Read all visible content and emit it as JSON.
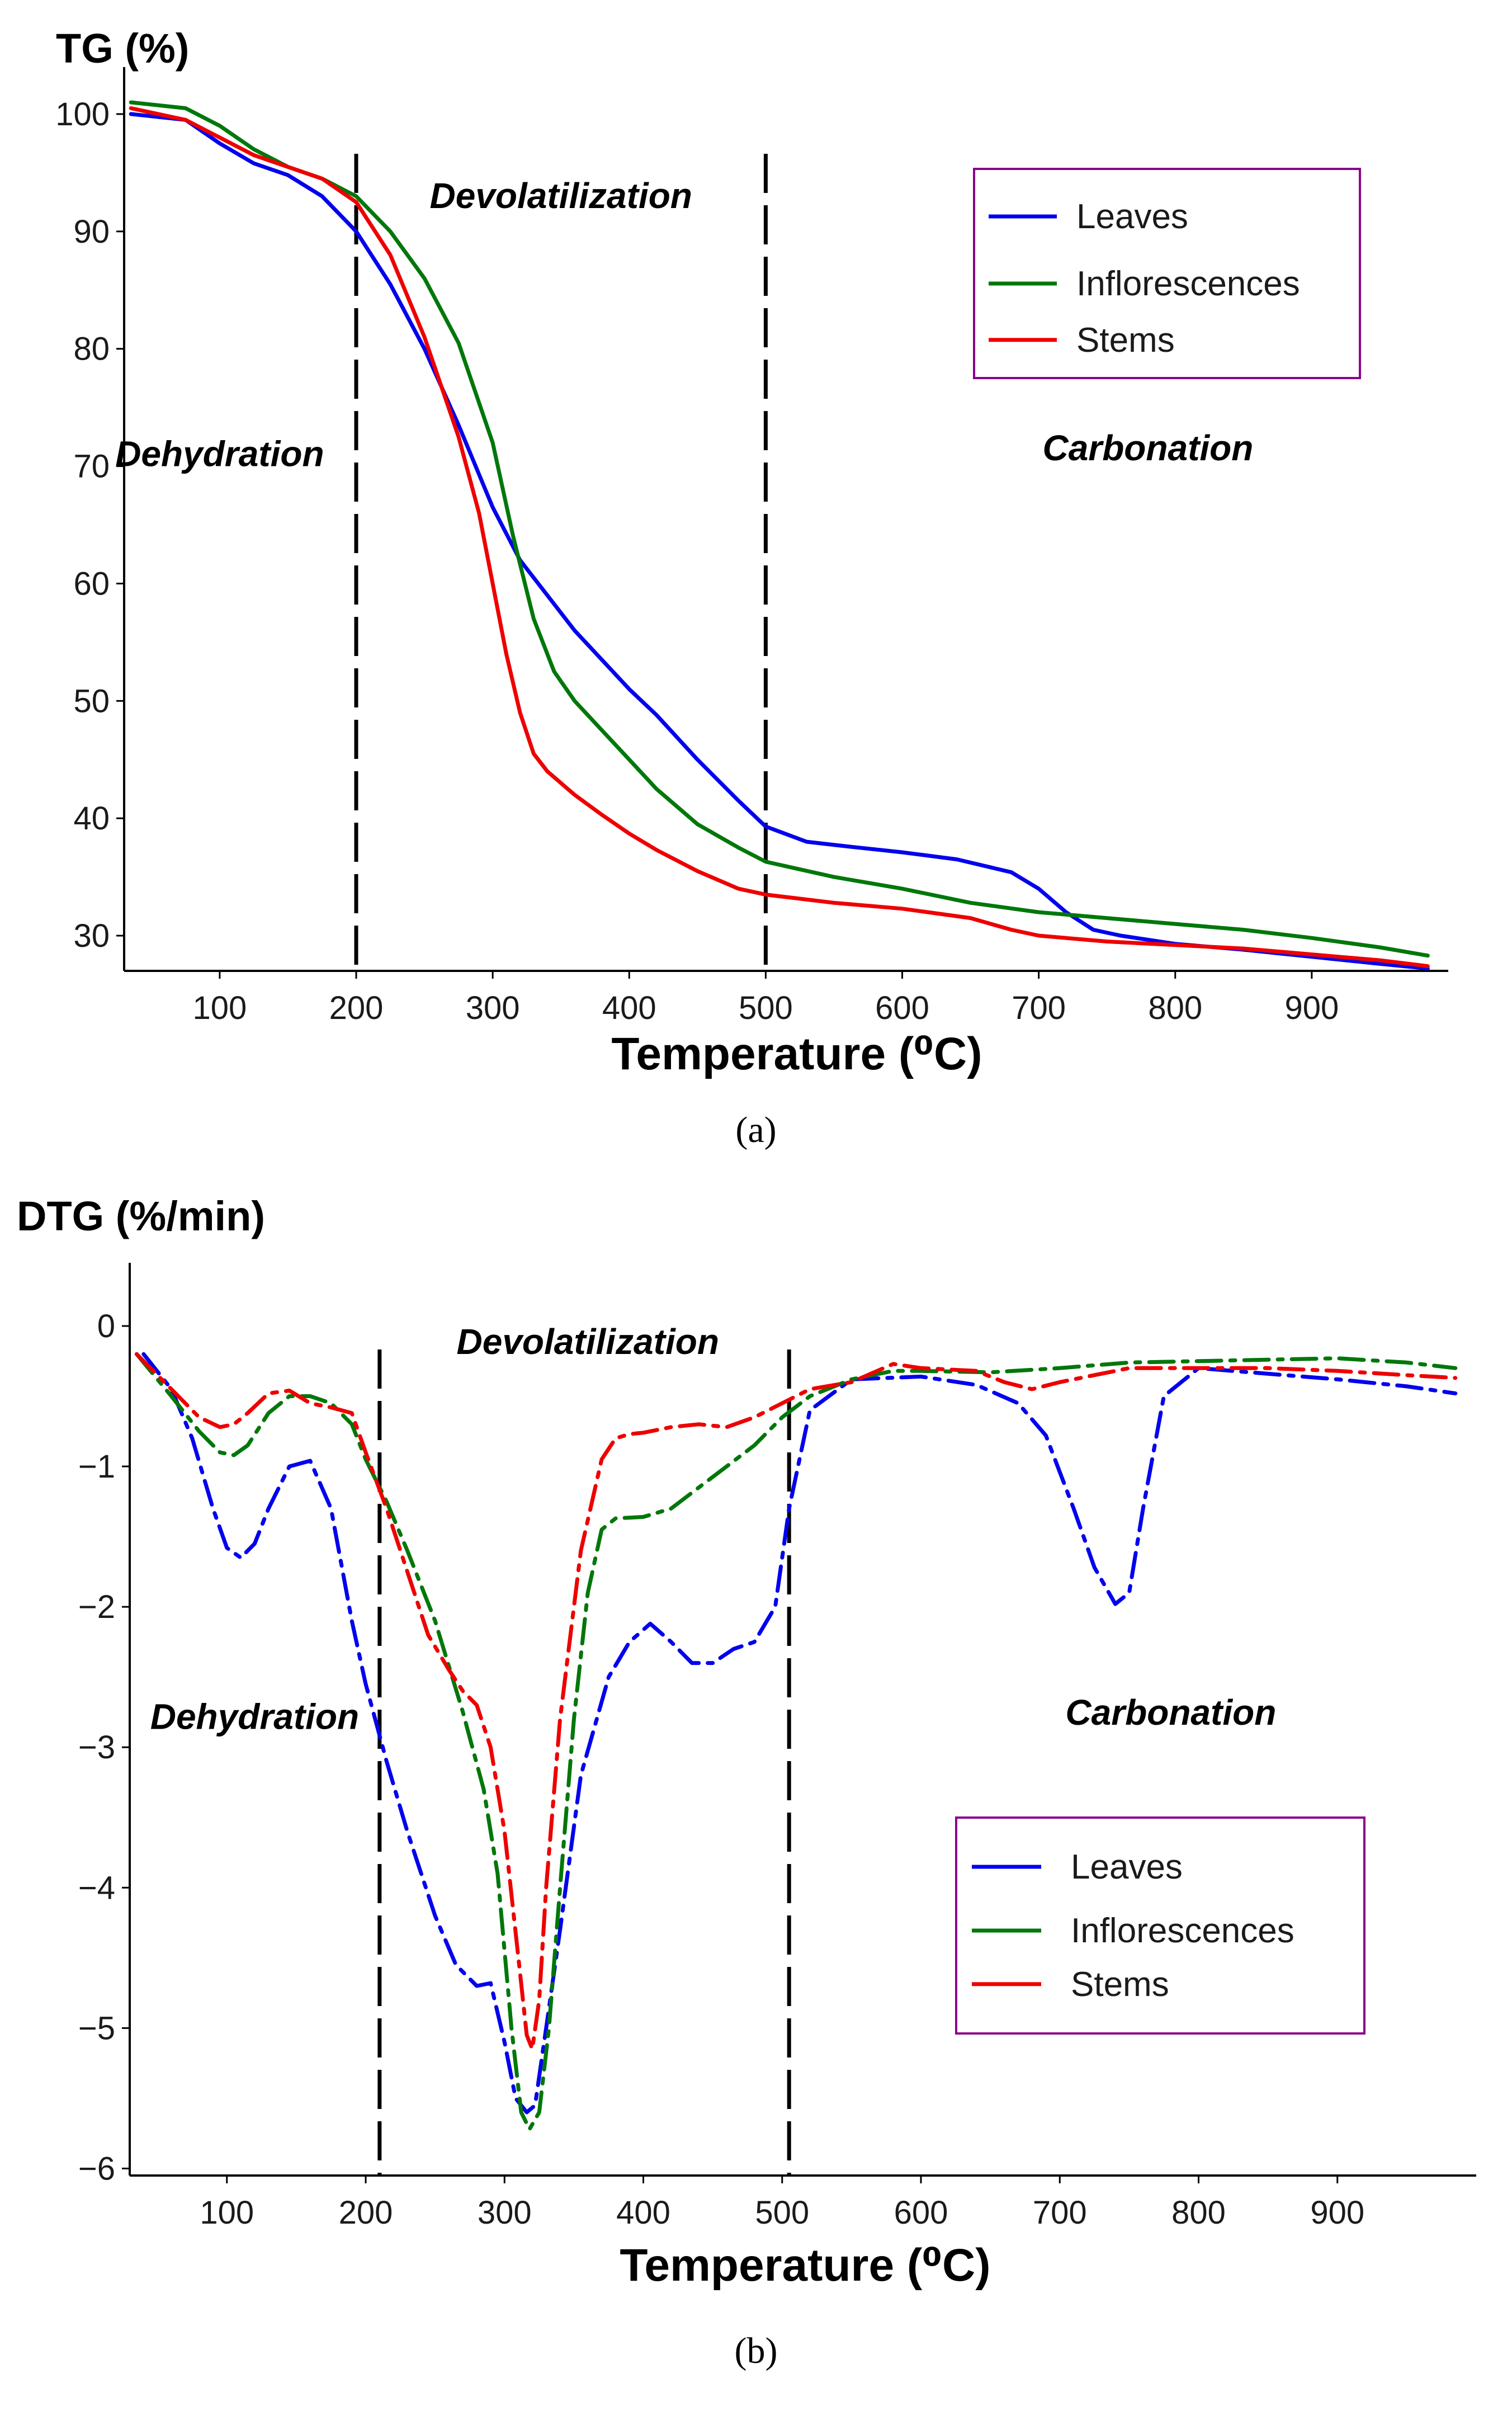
{
  "chart_data": [
    {
      "type": "line",
      "panel": "a",
      "ylabel": "TG (%)",
      "xlabel": "Temperature (⁰C)",
      "caption": "(a)",
      "xlim": [
        30,
        1000
      ],
      "ylim": [
        27,
        104
      ],
      "xticks": [
        100,
        200,
        300,
        400,
        500,
        600,
        700,
        800,
        900
      ],
      "yticks": [
        30,
        40,
        50,
        60,
        70,
        80,
        90,
        100
      ],
      "xtick_labels": [
        "100",
        "200",
        "300",
        "400",
        "500",
        "600",
        "700",
        "800",
        "900"
      ],
      "ytick_labels": [
        "30",
        "40",
        "50",
        "60",
        "70",
        "80",
        "90",
        "100"
      ],
      "dividers": [
        200,
        500
      ],
      "divider_style": "long-dash",
      "regions": [
        {
          "label": "Dehydration",
          "x": 100,
          "y": 70
        },
        {
          "label": "Devolatilization",
          "x": 350,
          "y": 92
        },
        {
          "label": "Carbonation",
          "x": 780,
          "y": 70.5
        }
      ],
      "legend_position": "top-right",
      "series": [
        {
          "name": "Leaves",
          "color": "#0000ee",
          "dash": "solid",
          "x": [
            35,
            75,
            100,
            125,
            150,
            175,
            200,
            225,
            250,
            275,
            300,
            320,
            340,
            360,
            380,
            400,
            420,
            450,
            480,
            500,
            530,
            560,
            600,
            640,
            680,
            700,
            720,
            740,
            760,
            800,
            850,
            900,
            950,
            985
          ],
          "y": [
            100,
            99.5,
            97.5,
            95.8,
            94.8,
            93,
            90,
            85.5,
            80,
            73.5,
            66.5,
            62,
            59,
            56,
            53.5,
            51,
            48.8,
            45,
            41.5,
            39.3,
            38,
            37.6,
            37.1,
            36.5,
            35.4,
            34,
            32,
            30.5,
            30,
            29.3,
            28.8,
            28.2,
            27.6,
            27.2
          ]
        },
        {
          "name": "Inflorescences",
          "color": "#00770a",
          "dash": "solid",
          "x": [
            35,
            75,
            100,
            125,
            150,
            175,
            200,
            225,
            250,
            275,
            300,
            315,
            330,
            345,
            360,
            380,
            400,
            420,
            450,
            480,
            500,
            550,
            600,
            650,
            700,
            750,
            800,
            850,
            900,
            950,
            985
          ],
          "y": [
            101,
            100.5,
            99,
            97,
            95.5,
            94.5,
            93,
            90,
            86,
            80.5,
            72,
            64,
            57,
            52.5,
            50,
            47.5,
            45,
            42.5,
            39.5,
            37.5,
            36.3,
            35,
            34,
            32.8,
            32,
            31.5,
            31,
            30.5,
            29.8,
            29,
            28.3
          ]
        },
        {
          "name": "Stems",
          "color": "#ee0000",
          "dash": "solid",
          "x": [
            35,
            75,
            100,
            125,
            150,
            175,
            200,
            225,
            250,
            275,
            290,
            300,
            310,
            320,
            330,
            340,
            360,
            380,
            400,
            420,
            450,
            480,
            500,
            550,
            600,
            650,
            680,
            700,
            750,
            800,
            850,
            900,
            950,
            985
          ],
          "y": [
            100.5,
            99.5,
            98,
            96.5,
            95.5,
            94.5,
            92.5,
            88,
            81,
            72.5,
            66,
            60,
            54,
            49,
            45.5,
            44,
            42,
            40.3,
            38.7,
            37.3,
            35.5,
            34,
            33.5,
            32.8,
            32.3,
            31.5,
            30.5,
            30,
            29.5,
            29.2,
            28.9,
            28.4,
            27.9,
            27.4
          ]
        }
      ]
    },
    {
      "type": "line",
      "panel": "b",
      "ylabel": "DTG (%/min)",
      "xlabel": "Temperature (⁰C)",
      "caption": "(b)",
      "xlim": [
        30,
        1000
      ],
      "ylim": [
        -6.05,
        0.45
      ],
      "xticks": [
        100,
        200,
        300,
        400,
        500,
        600,
        700,
        800,
        900
      ],
      "yticks": [
        0,
        -1,
        -2,
        -3,
        -4,
        -5,
        -6
      ],
      "xtick_labels": [
        "100",
        "200",
        "300",
        "400",
        "500",
        "600",
        "700",
        "800",
        "900"
      ],
      "ytick_labels": [
        "0",
        "−1",
        "−2",
        "−3",
        "−4",
        "−5",
        "−6"
      ],
      "dividers": [
        210,
        505
      ],
      "divider_style": "long-dash",
      "regions": [
        {
          "label": "Dehydration",
          "x": 120,
          "y": -2.87
        },
        {
          "label": "Devolatilization",
          "x": 360,
          "y": -0.2
        },
        {
          "label": "Carbonation",
          "x": 780,
          "y": -2.84
        }
      ],
      "legend_position": "bottom-right",
      "series": [
        {
          "name": "Leaves",
          "color": "#0000ee",
          "dash": "dash-dot",
          "x": [
            40,
            60,
            75,
            90,
            100,
            110,
            120,
            130,
            145,
            160,
            175,
            190,
            200,
            215,
            230,
            250,
            265,
            280,
            290,
            300,
            308,
            316,
            322,
            330,
            340,
            355,
            375,
            390,
            405,
            420,
            435,
            450,
            465,
            480,
            495,
            505,
            520,
            550,
            600,
            640,
            670,
            690,
            710,
            725,
            740,
            750,
            760,
            775,
            800,
            850,
            900,
            950,
            985
          ],
          "y": [
            -0.2,
            -0.45,
            -0.8,
            -1.3,
            -1.58,
            -1.65,
            -1.55,
            -1.3,
            -1.0,
            -0.96,
            -1.3,
            -2.1,
            -2.55,
            -3.1,
            -3.6,
            -4.2,
            -4.55,
            -4.7,
            -4.68,
            -5.1,
            -5.5,
            -5.6,
            -5.55,
            -5.0,
            -4.3,
            -3.2,
            -2.5,
            -2.25,
            -2.12,
            -2.25,
            -2.4,
            -2.4,
            -2.3,
            -2.25,
            -2.0,
            -1.3,
            -0.6,
            -0.38,
            -0.36,
            -0.42,
            -0.55,
            -0.78,
            -1.3,
            -1.72,
            -1.98,
            -1.9,
            -1.3,
            -0.5,
            -0.3,
            -0.34,
            -0.38,
            -0.43,
            -0.48
          ]
        },
        {
          "name": "Inflorescences",
          "color": "#00770a",
          "dash": "dash-dot",
          "x": [
            35,
            60,
            80,
            95,
            105,
            115,
            130,
            145,
            160,
            175,
            190,
            200,
            215,
            230,
            250,
            270,
            285,
            295,
            305,
            312,
            318,
            325,
            332,
            340,
            350,
            360,
            370,
            380,
            400,
            420,
            440,
            460,
            480,
            500,
            520,
            550,
            580,
            600,
            650,
            700,
            750,
            800,
            850,
            900,
            950,
            985
          ],
          "y": [
            -0.2,
            -0.5,
            -0.75,
            -0.9,
            -0.92,
            -0.85,
            -0.62,
            -0.5,
            -0.5,
            -0.55,
            -0.7,
            -0.95,
            -1.25,
            -1.6,
            -2.1,
            -2.75,
            -3.3,
            -3.9,
            -5.0,
            -5.6,
            -5.72,
            -5.6,
            -5.0,
            -4.0,
            -2.8,
            -1.9,
            -1.45,
            -1.37,
            -1.36,
            -1.3,
            -1.15,
            -1.0,
            -0.85,
            -0.65,
            -0.5,
            -0.38,
            -0.32,
            -0.32,
            -0.33,
            -0.3,
            -0.26,
            -0.25,
            -0.24,
            -0.23,
            -0.26,
            -0.3
          ]
        },
        {
          "name": "Stems",
          "color": "#ee0000",
          "dash": "dash-dot",
          "x": [
            35,
            60,
            80,
            95,
            105,
            115,
            130,
            145,
            160,
            175,
            190,
            200,
            215,
            230,
            245,
            260,
            270,
            280,
            290,
            300,
            310,
            316,
            320,
            325,
            330,
            340,
            355,
            370,
            380,
            390,
            400,
            420,
            440,
            460,
            480,
            500,
            520,
            550,
            580,
            600,
            640,
            660,
            680,
            700,
            750,
            800,
            850,
            900,
            950,
            985
          ],
          "y": [
            -0.2,
            -0.45,
            -0.65,
            -0.72,
            -0.7,
            -0.62,
            -0.48,
            -0.46,
            -0.55,
            -0.58,
            -0.62,
            -0.9,
            -1.3,
            -1.75,
            -2.2,
            -2.45,
            -2.6,
            -2.7,
            -3.0,
            -3.6,
            -4.5,
            -5.05,
            -5.15,
            -4.8,
            -4.0,
            -2.8,
            -1.6,
            -0.95,
            -0.8,
            -0.77,
            -0.76,
            -0.72,
            -0.7,
            -0.72,
            -0.65,
            -0.55,
            -0.45,
            -0.4,
            -0.27,
            -0.3,
            -0.32,
            -0.4,
            -0.45,
            -0.4,
            -0.3,
            -0.3,
            -0.3,
            -0.32,
            -0.35,
            -0.37
          ]
        }
      ]
    }
  ]
}
